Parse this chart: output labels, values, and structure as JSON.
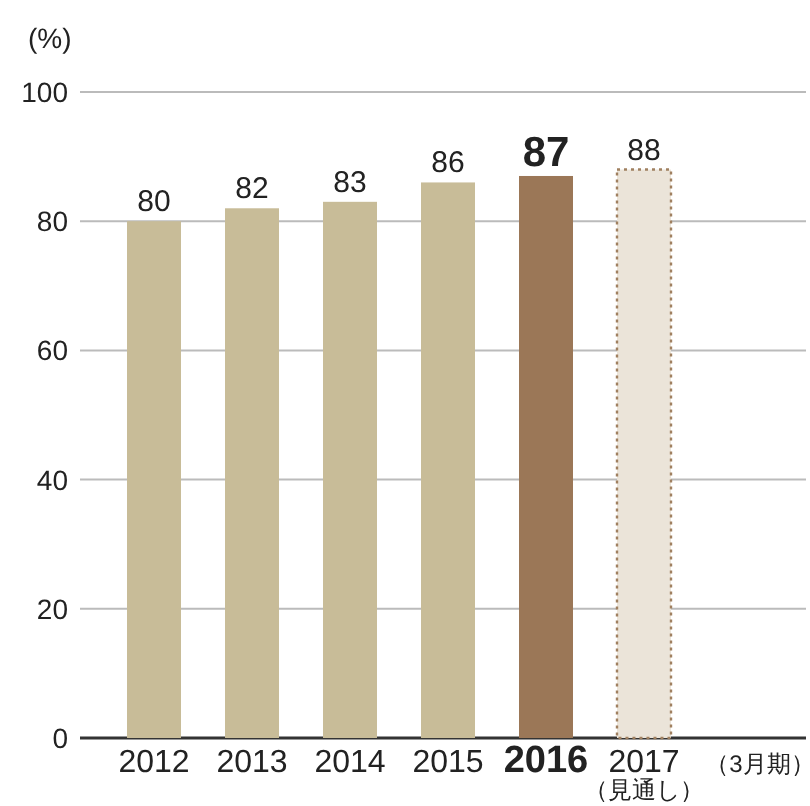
{
  "chart_data": {
    "type": "bar",
    "ylabel": "(%)",
    "xlabel": "（3月期）",
    "categories": [
      "2012",
      "2013",
      "2014",
      "2015",
      "2016",
      "2017\n（見通し）"
    ],
    "values": [
      80,
      82,
      83,
      86,
      87,
      88
    ],
    "colors": [
      "#c8bc98",
      "#c8bc98",
      "#c8bc98",
      "#c8bc98",
      "#9b7757",
      "#ebe4d9"
    ],
    "ylim": [
      0,
      100
    ],
    "yticks": [
      0,
      20,
      40,
      60,
      80,
      100
    ],
    "grid": "y",
    "data_labels": true
  }
}
